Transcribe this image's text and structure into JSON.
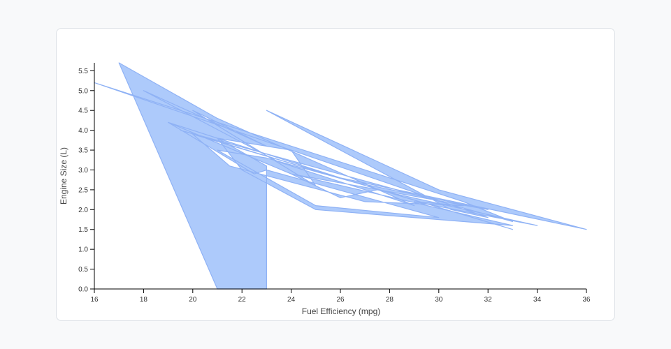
{
  "chart_data": {
    "type": "area",
    "title": "",
    "xlabel": "Fuel Efficiency (mpg)",
    "ylabel": "Engine Size (L)",
    "xlim": [
      16,
      36
    ],
    "ylim": [
      0,
      5.7
    ],
    "xticks": [
      "16",
      "18",
      "20",
      "22",
      "24",
      "26",
      "28",
      "30",
      "32",
      "34",
      "36"
    ],
    "yticks": [
      "0.0",
      "0.5",
      "1.0",
      "1.5",
      "2.0",
      "2.5",
      "3.0",
      "3.5",
      "4.0",
      "4.5",
      "5.0",
      "5.5"
    ],
    "grid": false,
    "legend": "none",
    "series": [
      {
        "x": [
          17,
          21,
          29,
          23.5,
          18,
          23,
          20,
          25,
          24,
          21,
          19,
          26,
          36,
          30,
          23,
          30.5,
          32,
          16,
          31,
          33,
          19.5,
          33,
          20,
          21.5,
          27,
          31,
          29,
          34,
          27.5,
          26,
          24,
          32,
          26.5,
          23,
          21,
          25,
          30,
          23,
          22.5,
          19,
          24,
          33,
          25,
          22,
          21,
          23,
          23,
          21
        ],
        "y": [
          5.7,
          4.3,
          2.1,
          3.2,
          5.0,
          3.6,
          4.5,
          2.6,
          3.5,
          3.8,
          4.2,
          2.8,
          1.5,
          2.5,
          4.5,
          2.0,
          1.8,
          5.2,
          2.2,
          1.7,
          4.0,
          1.5,
          3.9,
          3.1,
          2.2,
          2.1,
          2.2,
          1.6,
          2.5,
          2.3,
          2.9,
          2.0,
          2.7,
          3.3,
          3.5,
          2.1,
          1.8,
          3.0,
          2.9,
          4.2,
          2.9,
          1.6,
          2.0,
          3.0,
          3.8,
          3.1,
          0,
          0
        ],
        "color": "#a9c7fb",
        "stroke": "#8fb2f5"
      }
    ]
  }
}
